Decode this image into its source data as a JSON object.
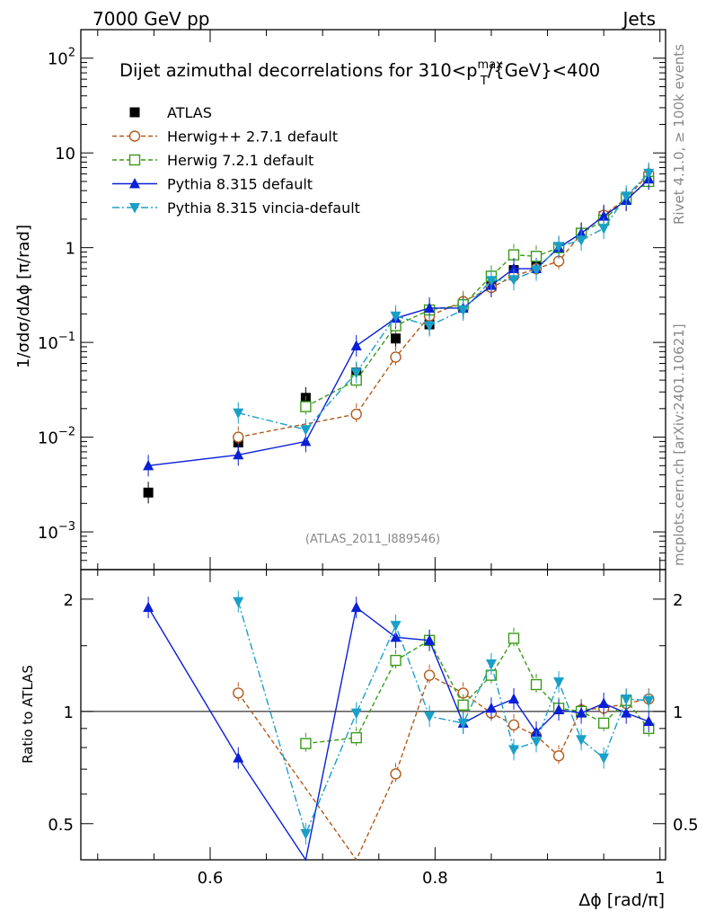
{
  "header": {
    "left": "7000 GeV pp",
    "right": "Jets"
  },
  "side_labels": {
    "rivet": "Rivet 4.1.0, ≥ 100k events",
    "mcplots": "mcplots.cern.ch [arXiv:2401.10621]"
  },
  "analysis_id": "(ATLAS_2011_I889546)",
  "colors": {
    "ATLAS": "#000000",
    "Herwig++ 2.7.1 default": "#b35a1a",
    "Herwig 7.2.1 default": "#3a9a1a",
    "Pythia 8.315 default": "#0a1fd6",
    "Pythia 8.315 vincia-default": "#1aa0c8"
  },
  "chart_data": [
    {
      "type": "line",
      "panel": "main",
      "title": "Dijet azimuthal decorrelations for 310<p_T^max/{GeV}<400",
      "ylabel": "1/σdσ/dΔϕ [π/rad]",
      "xlabel": "",
      "yscale": "log",
      "ylim": [
        0.0004,
        200
      ],
      "xlim": [
        0.485,
        1.005
      ],
      "yticks": [
        {
          "value": 100,
          "base": "10",
          "exp": "2"
        },
        {
          "value": 10,
          "base": "10",
          "exp": ""
        },
        {
          "value": 1,
          "base": "1",
          "exp": ""
        },
        {
          "value": 0.1,
          "base": "10",
          "exp": "−1"
        },
        {
          "value": 0.01,
          "base": "10",
          "exp": "−2"
        },
        {
          "value": 0.001,
          "base": "10",
          "exp": "−3"
        }
      ],
      "legend_position": "top-left",
      "x": [
        0.545,
        0.625,
        0.685,
        0.73,
        0.765,
        0.795,
        0.825,
        0.85,
        0.87,
        0.89,
        0.91,
        0.93,
        0.95,
        0.97,
        0.99
      ],
      "series": [
        {
          "name": "ATLAS",
          "marker": "square",
          "line": "none",
          "values": [
            0.0026,
            0.0088,
            0.026,
            0.048,
            0.11,
            0.155,
            0.24,
            0.39,
            0.58,
            0.7,
            1.0,
            1.42,
            2.15,
            3.2,
            5.7
          ]
        },
        {
          "name": "Herwig++ 2.7.1 default",
          "marker": "circle-open",
          "line": "dashed",
          "values": [
            null,
            0.01,
            null,
            0.0175,
            0.07,
            0.19,
            0.27,
            0.38,
            0.5,
            0.6,
            0.72,
            1.4,
            2.2,
            3.3,
            6.0
          ]
        },
        {
          "name": "Herwig 7.2.1 default",
          "marker": "square-open",
          "line": "dashed",
          "values": [
            null,
            null,
            0.021,
            0.04,
            0.15,
            0.22,
            0.25,
            0.5,
            0.84,
            0.81,
            1.0,
            1.42,
            1.95,
            3.3,
            5.0
          ]
        },
        {
          "name": "Pythia 8.315 default",
          "marker": "triangle-up",
          "line": "solid",
          "values": [
            0.005,
            0.0065,
            0.009,
            0.092,
            0.18,
            0.23,
            0.23,
            0.4,
            0.6,
            0.6,
            1.0,
            1.42,
            2.15,
            3.15,
            5.3
          ]
        },
        {
          "name": "Pythia 8.315 vincia-default",
          "marker": "triangle-down",
          "line": "dashdot",
          "values": [
            null,
            0.018,
            0.012,
            0.048,
            0.19,
            0.15,
            0.22,
            0.45,
            0.46,
            0.58,
            1.03,
            1.2,
            1.6,
            3.5,
            6.1
          ]
        }
      ]
    },
    {
      "type": "line",
      "panel": "ratio",
      "ylabel": "Ratio to ATLAS",
      "xlabel": "Δϕ [rad/π]",
      "yscale": "log",
      "ylim": [
        0.4,
        2.4
      ],
      "yticks": [
        2,
        1,
        0.5
      ],
      "xticks": [
        0.6,
        0.8,
        1
      ],
      "xtick_labels": [
        "0.6",
        "0.8",
        "1"
      ],
      "x": [
        0.545,
        0.625,
        0.685,
        0.73,
        0.765,
        0.795,
        0.825,
        0.85,
        0.87,
        0.89,
        0.91,
        0.93,
        0.95,
        0.97,
        0.99
      ],
      "series": [
        {
          "name": "Herwig++ 2.7.1 default",
          "values": [
            null,
            1.12,
            null,
            0.37,
            0.68,
            1.25,
            1.12,
            0.99,
            0.92,
            0.86,
            0.76,
            1.01,
            1.02,
            1.05,
            1.08
          ]
        },
        {
          "name": "Herwig 7.2.1 default",
          "values": [
            null,
            null,
            0.82,
            0.85,
            1.37,
            1.55,
            1.04,
            1.25,
            1.57,
            1.18,
            1.02,
            1.0,
            0.93,
            1.07,
            0.9
          ]
        },
        {
          "name": "Pythia 8.315 default",
          "values": [
            1.9,
            0.75,
            0.35,
            1.9,
            1.58,
            1.55,
            0.93,
            1.02,
            1.08,
            0.88,
            1.01,
            0.99,
            1.05,
            0.99,
            0.94
          ]
        },
        {
          "name": "Pythia 8.315 vincia-default",
          "values": [
            null,
            1.97,
            0.47,
            0.99,
            1.7,
            0.97,
            0.93,
            1.34,
            0.79,
            0.83,
            1.2,
            0.84,
            0.75,
            1.08,
            1.07
          ]
        }
      ]
    }
  ]
}
